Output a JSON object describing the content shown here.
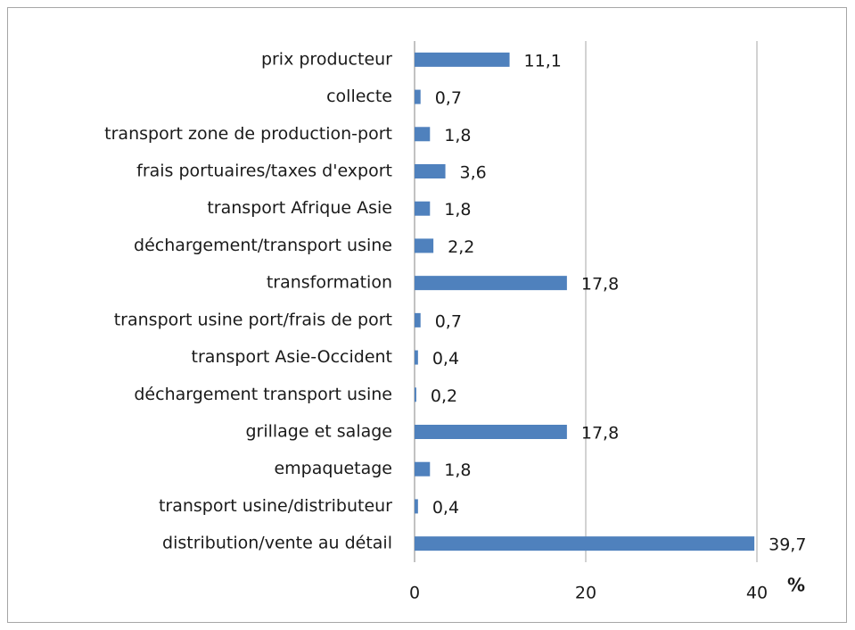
{
  "chart_data": {
    "type": "bar",
    "orientation": "horizontal",
    "categories": [
      "prix producteur",
      "collecte",
      "transport zone de production-port",
      "frais portuaires/taxes d'export",
      "transport Afrique Asie",
      "déchargement/transport usine",
      "transformation",
      "transport usine port/frais de port",
      "transport Asie-Occident",
      "déchargement transport usine",
      "grillage et salage",
      "empaquetage",
      "transport usine/distributeur",
      "distribution/vente au détail"
    ],
    "values": [
      11.1,
      0.7,
      1.8,
      3.6,
      1.8,
      2.2,
      17.8,
      0.7,
      0.4,
      0.2,
      17.8,
      1.8,
      0.4,
      39.7
    ],
    "value_labels": [
      "11,1",
      "0,7",
      "1,8",
      "3,6",
      "1,8",
      "2,2",
      "17,8",
      "0,7",
      "0,4",
      "0,2",
      "17,8",
      "1,8",
      "0,4",
      "39,7"
    ],
    "color": "#4f81bd",
    "xlim": [
      0,
      40
    ],
    "xticks": [
      0,
      20,
      40
    ],
    "x_label": "%",
    "grid": true
  }
}
